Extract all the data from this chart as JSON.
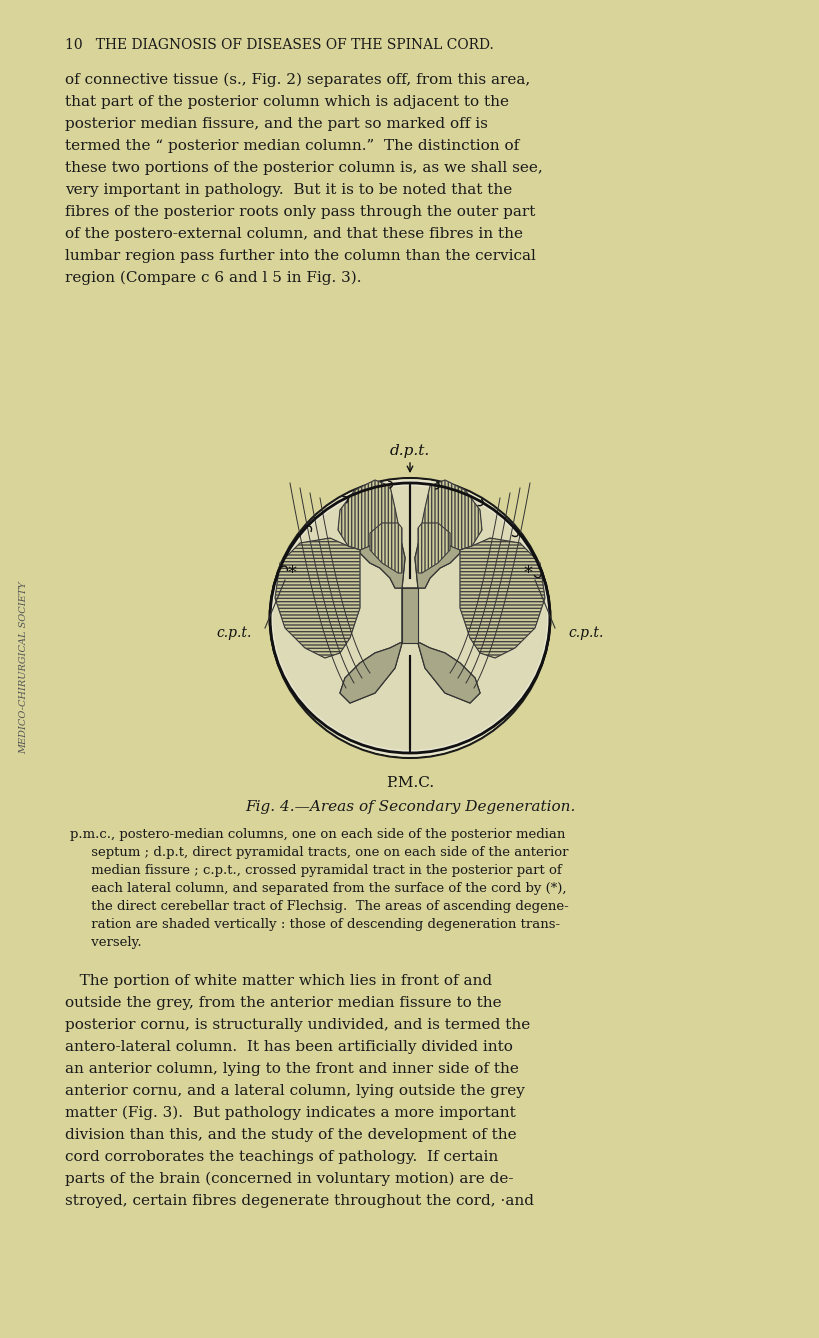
{
  "bg_color": "#d8d49a",
  "page_bg": "#ccc98a",
  "text_color": "#1a1a1a",
  "fig_bg": "#ccc98a",
  "header_text": "10   THE DIAGNOSIS OF DISEASES OF THE SPINAL CORD.",
  "para1": "of connective tissue (s., Fig. 2) separates off, from this area,\nthat part of the posterior column which is adjacent to the\nposterior median fissure, and the part so marked off is\ntermed the “ posterior median column.”  The distinction of\nthese two portions of the posterior column is, as we shall see,\nvery important in pathology.  But it is to be noted that the\nfibres of the posterior roots only pass through the outer part\nof the postero-external column, and that these fibres in the\nlumbar region pass further into the column than the cervical\nregion (Compare c 6 and l 5 in Fig. 3).",
  "fig_caption": "Fig. 4.—Areas of Secondary Degeneration.",
  "legend_text": "p.m.c., postero-median columns, one on each side of the posterior median\n     septum ; d.p.t, direct pyramidal tracts, one on each side of the anterior\n     median fissure ; c.p.t., crossed pyramidal tract in the posterior part of\n     each lateral column, and separated from the surface of the cord by (*),\n     the direct cerebellar tract of Flechsig.  The areas of ascending degene-\n     ration are shaded vertically : those of descending degeneration trans-\n     versely.",
  "para2": "   The portion of white matter which lies in front of and\noutside the grey, from the anterior median fissure to the\nposterior cornu, is structurally undivided, and is termed the\nantero-lateral column.  It has been artificially divided into\nan anterior column, lying to the front and inner side of the\nanterior cornu, and a lateral column, lying outside the grey\nmatter (Fig. 3).  But pathology indicates a more important\ndivision than this, and the study of the development of the\ncord corroborates the teachings of pathology.  If certain\nparts of the brain (concerned in voluntary motion) are de-\nstroyed, certain fibres degenerate throughout the cord, ·and",
  "sidebar_text": "MEDICO-CHIRURGICAL SOCIETY",
  "label_dpt": "d.p.t.",
  "label_cpt_left": "c.p.t.",
  "label_cpt_right": "c.p.t.",
  "label_pmc": "P.M.C.",
  "fig_width": 8.0,
  "fig_height": 13.18
}
